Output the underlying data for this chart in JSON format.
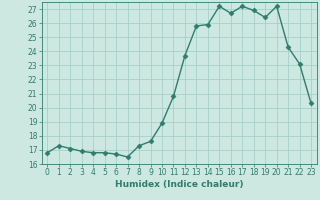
{
  "x": [
    0,
    1,
    2,
    3,
    4,
    5,
    6,
    7,
    8,
    9,
    10,
    11,
    12,
    13,
    14,
    15,
    16,
    17,
    18,
    19,
    20,
    21,
    22,
    23
  ],
  "y": [
    16.8,
    17.3,
    17.1,
    16.9,
    16.8,
    16.8,
    16.7,
    16.5,
    17.3,
    17.6,
    18.9,
    20.8,
    23.7,
    25.8,
    25.9,
    27.2,
    26.7,
    27.2,
    26.9,
    26.4,
    27.2,
    24.3,
    23.1,
    20.3
  ],
  "line_color": "#2e7d6e",
  "marker": "D",
  "markersize": 2.5,
  "linewidth": 1.0,
  "bg_color": "#cce8e0",
  "grid_color": "#9ecec4",
  "xlabel": "Humidex (Indice chaleur)",
  "ylabel": "",
  "ylim": [
    16,
    27.5
  ],
  "yticks": [
    16,
    17,
    18,
    19,
    20,
    21,
    22,
    23,
    24,
    25,
    26,
    27
  ],
  "xticks": [
    0,
    1,
    2,
    3,
    4,
    5,
    6,
    7,
    8,
    9,
    10,
    11,
    12,
    13,
    14,
    15,
    16,
    17,
    18,
    19,
    20,
    21,
    22,
    23
  ],
  "tick_color": "#2e7d6e",
  "label_color": "#2e7d6e",
  "tick_fontsize": 5.5,
  "xlabel_fontsize": 6.5
}
